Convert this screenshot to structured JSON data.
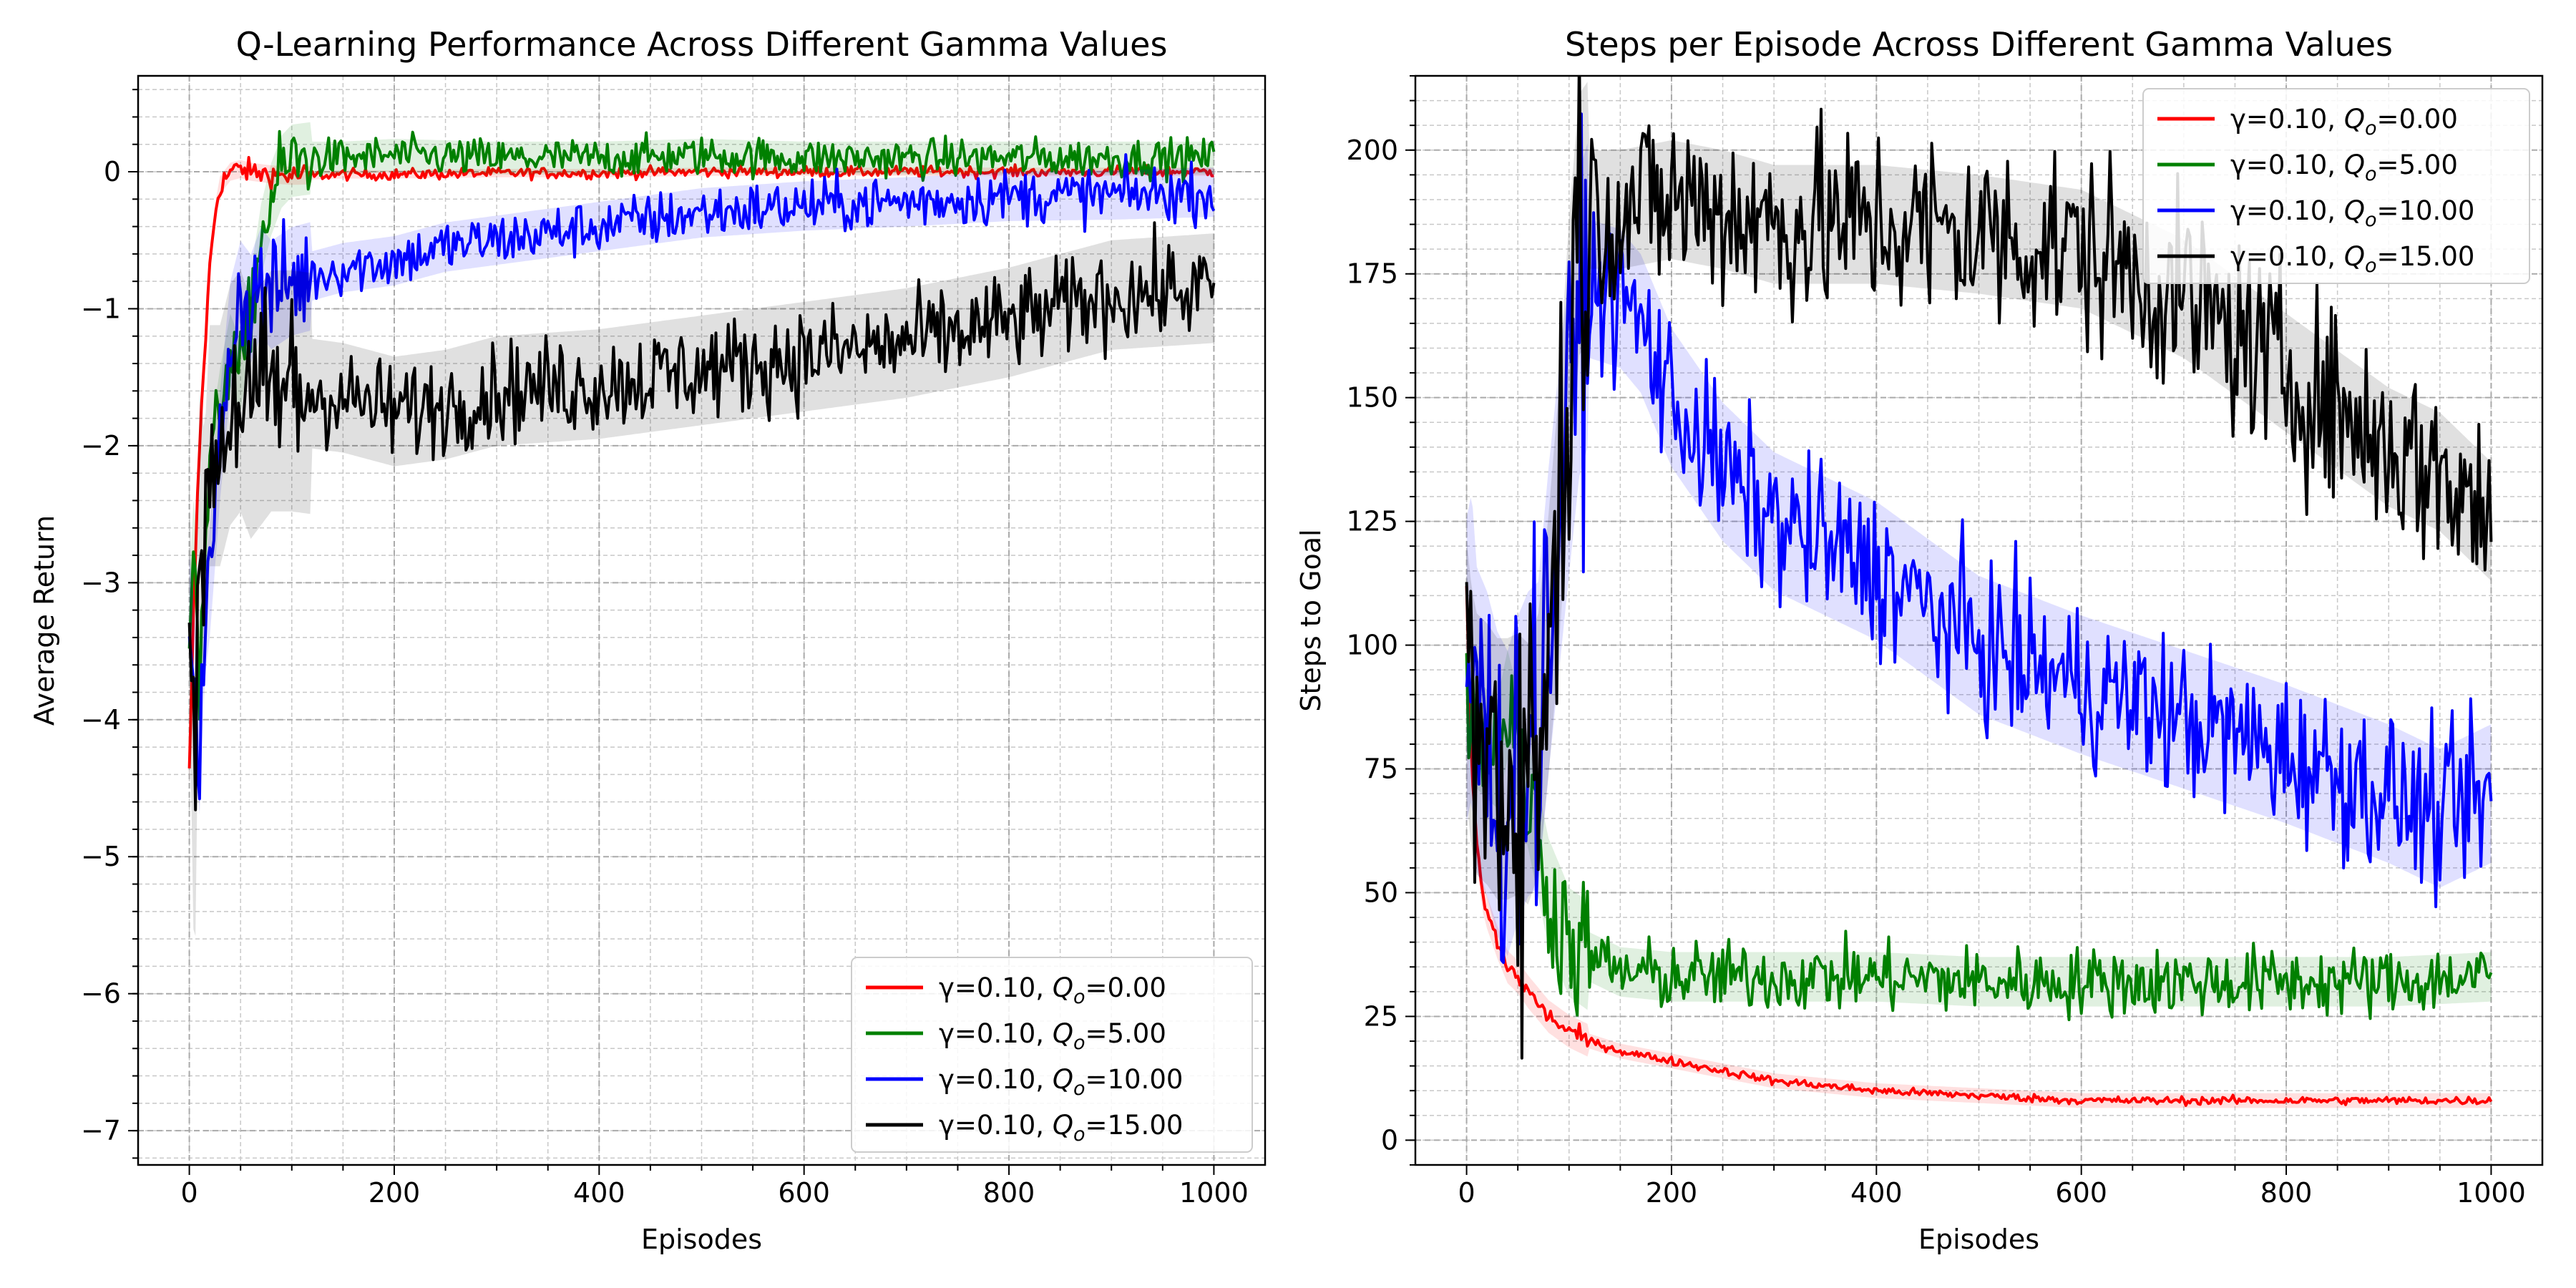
{
  "chart_data": [
    {
      "type": "line",
      "title": "Q-Learning Performance Across Different Gamma Values",
      "xlabel": "Episodes",
      "ylabel": "Average Return",
      "xlim": [
        -50,
        1050
      ],
      "ylim": [
        -7.25,
        0.7
      ],
      "xticks": [
        0,
        200,
        400,
        600,
        800,
        1000
      ],
      "yticks": [
        -7,
        -6,
        -5,
        -4,
        -3,
        -2,
        -1,
        0
      ],
      "grid": true,
      "legend_position": "lower-right",
      "series": [
        {
          "name": "γ=0.10, Q_o=0.00",
          "color": "#ff0000",
          "x": [
            0,
            5,
            10,
            15,
            20,
            25,
            30,
            40,
            50,
            60,
            80,
            100,
            150,
            200,
            300,
            400,
            500,
            600,
            700,
            800,
            900,
            1000
          ],
          "y": [
            -4.4,
            -3.0,
            -2.0,
            -1.3,
            -0.7,
            -0.3,
            -0.1,
            0.0,
            0.02,
            0.0,
            -0.02,
            -0.03,
            -0.02,
            -0.02,
            -0.01,
            -0.01,
            0.0,
            0.0,
            0.0,
            0.0,
            0.0,
            0.0
          ]
        },
        {
          "name": "γ=0.10, Q_o=5.00",
          "color": "#008000",
          "x": [
            0,
            5,
            10,
            15,
            20,
            30,
            40,
            50,
            60,
            70,
            80,
            90,
            100,
            120,
            150,
            200,
            300,
            400,
            500,
            600,
            700,
            800,
            900,
            1000
          ],
          "y": [
            -3.3,
            -2.5,
            -3.9,
            -2.8,
            -2.2,
            -1.7,
            -1.3,
            -1.5,
            -1.0,
            -0.5,
            -0.2,
            0.0,
            0.08,
            0.1,
            0.1,
            0.12,
            0.1,
            0.1,
            0.12,
            0.1,
            0.1,
            0.1,
            0.1,
            0.1
          ]
        },
        {
          "name": "γ=0.10, Q_o=10.00",
          "color": "#0000ff",
          "x": [
            0,
            5,
            10,
            15,
            20,
            30,
            40,
            50,
            60,
            70,
            80,
            100,
            150,
            200,
            250,
            300,
            400,
            500,
            600,
            700,
            800,
            900,
            1000
          ],
          "y": [
            -3.2,
            -3.6,
            -4.3,
            -3.3,
            -3.0,
            -2.0,
            -1.2,
            -0.9,
            -1.0,
            -0.8,
            -0.9,
            -0.8,
            -0.7,
            -0.65,
            -0.55,
            -0.5,
            -0.4,
            -0.3,
            -0.25,
            -0.22,
            -0.18,
            -0.17,
            -0.15
          ]
        },
        {
          "name": "γ=0.10, Q_o=15.00",
          "color": "#000000",
          "x": [
            0,
            3,
            5,
            8,
            10,
            15,
            20,
            30,
            40,
            50,
            60,
            80,
            100,
            150,
            200,
            250,
            300,
            400,
            500,
            600,
            700,
            800,
            900,
            1000
          ],
          "y": [
            -3.2,
            -4.0,
            -5.3,
            -3.5,
            -2.5,
            -2.8,
            -2.0,
            -2.0,
            -1.7,
            -1.6,
            -1.8,
            -1.6,
            -1.6,
            -1.65,
            -1.75,
            -1.7,
            -1.6,
            -1.55,
            -1.45,
            -1.35,
            -1.25,
            -1.1,
            -0.9,
            -0.85
          ]
        }
      ]
    },
    {
      "type": "line",
      "title": "Steps per Episode Across Different Gamma Values",
      "xlabel": "Episodes",
      "ylabel": "Steps to Goal",
      "xlim": [
        -50,
        1050
      ],
      "ylim": [
        -5,
        215
      ],
      "xticks": [
        0,
        200,
        400,
        600,
        800,
        1000
      ],
      "yticks": [
        0,
        25,
        50,
        75,
        100,
        125,
        150,
        175,
        200
      ],
      "grid": true,
      "legend_position": "top-right",
      "series": [
        {
          "name": "γ=0.10,  Q_o=0.00",
          "color": "#ff0000",
          "x": [
            0,
            5,
            10,
            15,
            20,
            30,
            40,
            50,
            60,
            80,
            100,
            120,
            150,
            200,
            250,
            300,
            400,
            500,
            600,
            700,
            800,
            900,
            1000
          ],
          "y": [
            110,
            75,
            60,
            50,
            46,
            40,
            35,
            33,
            30,
            25,
            22,
            20,
            18,
            16,
            14,
            12,
            10,
            9,
            8,
            8,
            8,
            8,
            8
          ]
        },
        {
          "name": "γ=0.10,  Q_o=5.00",
          "color": "#008000",
          "x": [
            0,
            5,
            10,
            20,
            30,
            40,
            50,
            60,
            70,
            80,
            90,
            100,
            120,
            150,
            200,
            300,
            400,
            500,
            600,
            700,
            800,
            900,
            1000
          ],
          "y": [
            100,
            85,
            82,
            80,
            78,
            88,
            80,
            70,
            60,
            50,
            45,
            40,
            37,
            34,
            33,
            33,
            33,
            32,
            32,
            32,
            32,
            32,
            33
          ]
        },
        {
          "name": "γ=0.10,  Q_o=10.00",
          "color": "#0000ff",
          "x": [
            0,
            5,
            10,
            20,
            30,
            40,
            50,
            60,
            70,
            80,
            90,
            100,
            110,
            120,
            150,
            170,
            200,
            250,
            300,
            400,
            500,
            600,
            700,
            800,
            900,
            950,
            1000
          ],
          "y": [
            95,
            100,
            85,
            80,
            72,
            68,
            75,
            80,
            82,
            105,
            125,
            145,
            165,
            172,
            170,
            165,
            150,
            135,
            125,
            115,
            100,
            92,
            85,
            78,
            70,
            65,
            70
          ]
        },
        {
          "name": "γ=0.10,  Q_o=15.00",
          "color": "#000000",
          "x": [
            0,
            5,
            10,
            20,
            30,
            40,
            50,
            60,
            70,
            80,
            90,
            100,
            110,
            120,
            150,
            200,
            250,
            300,
            400,
            500,
            600,
            650,
            700,
            800,
            900,
            950,
            1000
          ],
          "y": [
            95,
            85,
            80,
            78,
            75,
            75,
            76,
            74,
            80,
            100,
            125,
            160,
            185,
            188,
            188,
            190,
            188,
            185,
            185,
            183,
            180,
            175,
            170,
            155,
            140,
            135,
            125
          ]
        }
      ]
    }
  ]
}
